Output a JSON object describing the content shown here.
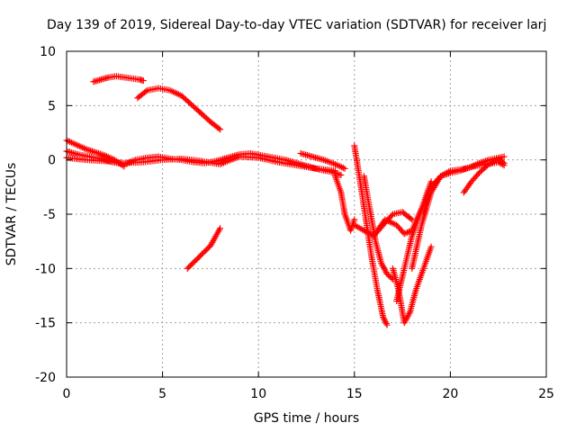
{
  "chart_data": {
    "type": "scatter",
    "title": "Day 139 of 2019, Sidereal Day-to-day VTEC variation (SDTVAR) for receiver larj",
    "xlabel": "GPS time / hours",
    "ylabel": "SDTVAR / TECUs",
    "xlim": [
      0,
      25
    ],
    "ylim": [
      -20,
      10
    ],
    "xticks": [
      0,
      5,
      10,
      15,
      20,
      25
    ],
    "yticks": [
      -20,
      -15,
      -10,
      -5,
      0,
      5,
      10
    ],
    "grid": true,
    "legend": "none",
    "marker": "plus",
    "color": "#ff0000",
    "series": [
      {
        "x": [
          1.4,
          1.8,
          2.2,
          2.6,
          3.0,
          3.4,
          3.8,
          4.0
        ],
        "y": [
          7.2,
          7.4,
          7.6,
          7.7,
          7.6,
          7.5,
          7.4,
          7.3
        ]
      },
      {
        "x": [
          3.7,
          4.2,
          4.8,
          5.4,
          6.0,
          6.5,
          7.0,
          7.5,
          8.0
        ],
        "y": [
          5.7,
          6.4,
          6.6,
          6.4,
          5.9,
          5.1,
          4.3,
          3.5,
          2.8
        ]
      },
      {
        "x": [
          6.3,
          6.7,
          7.1,
          7.5,
          8.0
        ],
        "y": [
          -10.0,
          -9.3,
          -8.6,
          -7.9,
          -6.3
        ]
      },
      {
        "x": [
          0.0,
          0.6,
          1.2,
          1.8,
          2.4,
          3.0,
          3.6,
          4.2,
          4.8,
          5.4,
          6.0,
          6.6,
          7.2,
          7.8,
          8.4,
          9.0,
          9.6,
          10.2,
          10.8,
          11.4,
          12.0,
          12.6,
          13.2,
          13.8,
          14.3
        ],
        "y": [
          0.8,
          0.5,
          0.3,
          0.1,
          -0.2,
          -0.4,
          0.0,
          0.2,
          0.3,
          0.1,
          0.0,
          -0.2,
          -0.3,
          -0.1,
          0.2,
          0.5,
          0.6,
          0.4,
          0.2,
          0.0,
          -0.3,
          -0.6,
          -0.9,
          -1.1,
          -1.4
        ]
      },
      {
        "x": [
          0.0,
          0.5,
          1.0,
          1.5,
          2.0,
          2.5,
          3.0
        ],
        "y": [
          1.8,
          1.4,
          1.0,
          0.7,
          0.4,
          0.0,
          -0.6
        ]
      },
      {
        "x": [
          0.0,
          1.0,
          2.0,
          3.0,
          4.0,
          5.0,
          6.0,
          7.0,
          8.0,
          9.0,
          10.0,
          11.0,
          12.0,
          13.0,
          14.0
        ],
        "y": [
          0.2,
          0.0,
          -0.1,
          -0.3,
          -0.2,
          0.0,
          0.1,
          -0.1,
          -0.4,
          0.3,
          0.2,
          -0.2,
          -0.5,
          -0.8,
          -1.0
        ]
      },
      {
        "x": [
          12.2,
          12.8,
          13.4,
          14.0,
          14.5
        ],
        "y": [
          0.6,
          0.3,
          0.0,
          -0.4,
          -0.8
        ]
      },
      {
        "x": [
          14.0,
          14.3,
          14.5,
          14.8,
          15.0
        ],
        "y": [
          -1.5,
          -3.0,
          -5.0,
          -6.5,
          -5.5
        ]
      },
      {
        "x": [
          15.0,
          15.3,
          15.6,
          15.9,
          16.2,
          16.5,
          16.7
        ],
        "y": [
          1.3,
          -2.0,
          -5.5,
          -9.0,
          -12.0,
          -14.5,
          -15.2
        ]
      },
      {
        "x": [
          15.5,
          15.8,
          16.1,
          16.4,
          16.7,
          17.0
        ],
        "y": [
          -1.5,
          -4.5,
          -7.5,
          -9.5,
          -10.5,
          -11.0
        ]
      },
      {
        "x": [
          16.0,
          16.6,
          17.2,
          17.6,
          18.0,
          18.5,
          19.0
        ],
        "y": [
          -7.0,
          -5.5,
          -6.0,
          -6.8,
          -6.5,
          -4.5,
          -2.0
        ]
      },
      {
        "x": [
          15.0,
          15.5,
          16.0,
          16.5,
          17.0,
          17.5,
          18.0
        ],
        "y": [
          -6.0,
          -6.5,
          -7.0,
          -6.0,
          -5.0,
          -4.8,
          -5.5
        ]
      },
      {
        "x": [
          17.0,
          17.3,
          17.6,
          17.9,
          18.2,
          18.6,
          19.0
        ],
        "y": [
          -10.0,
          -12.0,
          -15.0,
          -14.0,
          -12.0,
          -10.0,
          -8.0
        ]
      },
      {
        "x": [
          17.2,
          17.6,
          18.0,
          18.5,
          19.0,
          19.5
        ],
        "y": [
          -13.0,
          -10.0,
          -7.0,
          -4.5,
          -2.5,
          -1.5
        ]
      },
      {
        "x": [
          18.0,
          18.5,
          19.0,
          19.5,
          20.0,
          20.5,
          21.0,
          21.5,
          22.0,
          22.5,
          22.8
        ],
        "y": [
          -10.0,
          -6.0,
          -3.0,
          -1.5,
          -1.0,
          -0.9,
          -0.7,
          -0.5,
          -0.4,
          -0.2,
          -0.5
        ]
      },
      {
        "x": [
          18.6,
          19.0,
          19.5,
          20.0,
          20.5,
          21.0,
          21.5,
          22.0,
          22.5,
          22.8
        ],
        "y": [
          -5.0,
          -2.5,
          -1.5,
          -1.2,
          -1.0,
          -0.7,
          -0.3,
          0.0,
          0.2,
          0.3
        ]
      },
      {
        "x": [
          20.7,
          21.1,
          21.5,
          22.0,
          22.5,
          22.8
        ],
        "y": [
          -3.0,
          -2.0,
          -1.2,
          -0.4,
          0.1,
          -0.3
        ]
      }
    ]
  }
}
